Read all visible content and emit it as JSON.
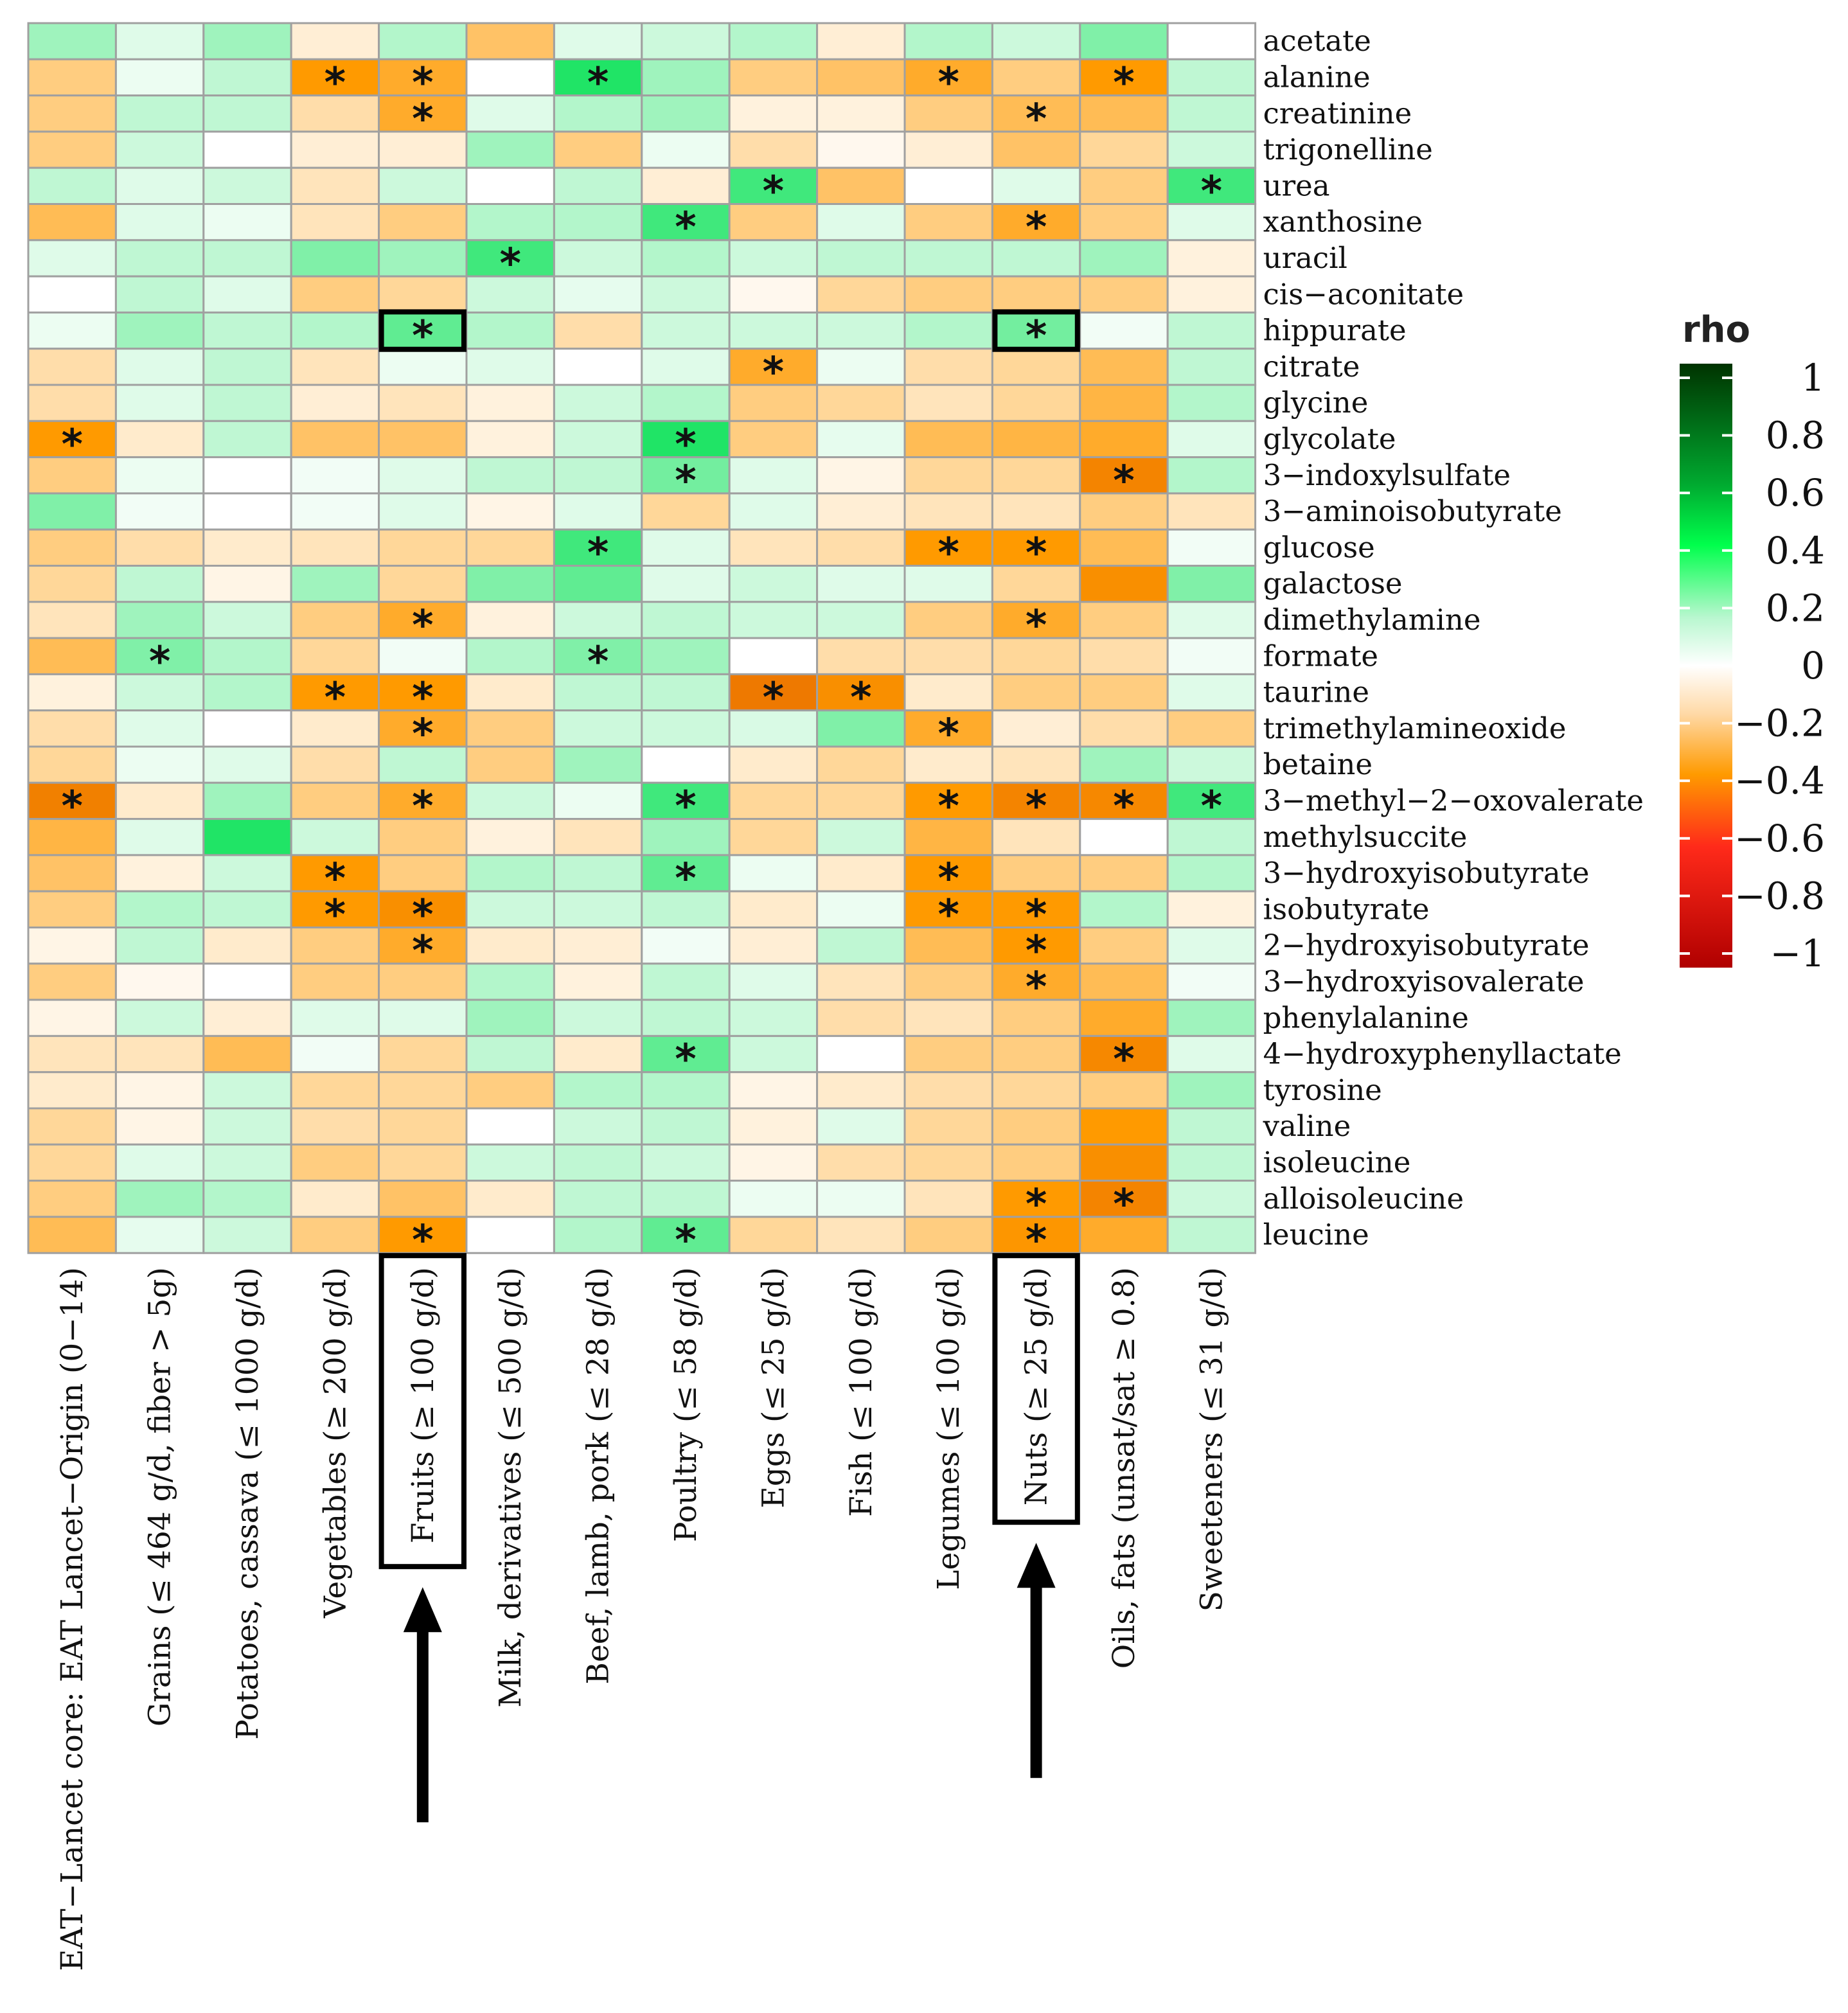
{
  "chart_data": {
    "type": "heatmap",
    "legend_title": "rho",
    "legend_ticks": [
      "1",
      "0.8",
      "0.6",
      "0.4",
      "0.2",
      "0",
      "−0.2",
      "−0.4",
      "−0.6",
      "−0.8",
      "−1"
    ],
    "color_scale": {
      "low": "#b00000",
      "mid_low": "#ff9a00",
      "mid": "#ffffff",
      "mid_high": "#00e050",
      "high": "#003300"
    },
    "range": [
      -1,
      1
    ],
    "highlight_color": "#000000",
    "columns": [
      "EAT−Lancet core: EAT Lancet−Origin (0−14)",
      "Grains (≤ 464 g/d, fiber > 5g)",
      "Potatoes, cassava (≤ 1000 g/d)",
      "Vegetables (≥ 200 g/d)",
      "Fruits (≥ 100 g/d)",
      "Milk, derivatives (≤ 500 g/d)",
      "Beef, lamb, pork (≤ 28 g/d)",
      "Poultry (≤ 58 g/d)",
      "Eggs (≤ 25 g/d)",
      "Fish (≤ 100 g/d)",
      "Legumes (≤ 100 g/d)",
      "Nuts (≥ 25 g/d)",
      "Oils, fats (unsat/sat ≥ 0.8)",
      "Sweeteners (≤ 31 g/d)"
    ],
    "highlighted_columns": [
      4,
      11
    ],
    "highlighted_cells": [
      [
        8,
        4
      ],
      [
        8,
        11
      ]
    ],
    "rows": [
      {
        "name": "acetate",
        "values": [
          0.15,
          0.05,
          0.15,
          -0.05,
          0.12,
          -0.18,
          0.05,
          0.08,
          0.12,
          -0.05,
          0.12,
          0.08,
          0.2,
          0.0
        ],
        "stars": []
      },
      {
        "name": "alanine",
        "values": [
          -0.15,
          0.03,
          0.1,
          -0.3,
          -0.25,
          0.0,
          0.35,
          0.15,
          -0.15,
          -0.18,
          -0.25,
          -0.15,
          -0.3,
          0.1
        ],
        "stars": [
          3,
          4,
          6,
          10,
          12
        ]
      },
      {
        "name": "creatinine",
        "values": [
          -0.15,
          0.1,
          0.1,
          -0.1,
          -0.25,
          0.05,
          0.12,
          0.15,
          -0.04,
          -0.04,
          -0.15,
          -0.2,
          -0.2,
          0.1
        ],
        "stars": [
          4,
          11
        ]
      },
      {
        "name": "trigonelline",
        "values": [
          -0.15,
          0.08,
          0.0,
          -0.05,
          -0.05,
          0.15,
          -0.15,
          0.03,
          -0.1,
          -0.02,
          -0.05,
          -0.18,
          -0.12,
          0.08
        ],
        "stars": []
      },
      {
        "name": "urea",
        "values": [
          0.1,
          0.05,
          0.08,
          -0.08,
          0.08,
          0.0,
          0.1,
          -0.05,
          0.3,
          -0.18,
          0.0,
          0.05,
          -0.15,
          0.3
        ],
        "stars": [
          8,
          13
        ]
      },
      {
        "name": "xanthosine",
        "values": [
          -0.2,
          0.05,
          0.03,
          -0.08,
          -0.15,
          0.12,
          0.12,
          0.3,
          -0.15,
          0.05,
          -0.15,
          -0.25,
          -0.15,
          0.05
        ],
        "stars": [
          7,
          11
        ]
      },
      {
        "name": "uracil",
        "values": [
          0.05,
          0.1,
          0.1,
          0.2,
          0.15,
          0.3,
          0.08,
          0.12,
          0.08,
          0.1,
          0.1,
          0.1,
          0.15,
          -0.04
        ],
        "stars": [
          5
        ]
      },
      {
        "name": "cis−aconitate",
        "values": [
          0.0,
          0.1,
          0.05,
          -0.15,
          -0.12,
          0.08,
          0.04,
          0.08,
          -0.02,
          -0.12,
          -0.15,
          -0.15,
          -0.15,
          -0.04
        ],
        "stars": []
      },
      {
        "name": "hippurate",
        "values": [
          0.03,
          0.15,
          0.1,
          0.12,
          0.25,
          0.12,
          -0.1,
          0.08,
          0.08,
          0.08,
          0.12,
          0.22,
          0.02,
          0.1
        ],
        "stars": [
          4,
          11
        ]
      },
      {
        "name": "citrate",
        "values": [
          -0.1,
          0.05,
          0.1,
          -0.08,
          0.03,
          0.05,
          0.0,
          0.05,
          -0.25,
          0.03,
          -0.1,
          -0.12,
          -0.2,
          0.1
        ],
        "stars": [
          8
        ]
      },
      {
        "name": "glycine",
        "values": [
          -0.1,
          0.05,
          0.1,
          -0.05,
          -0.08,
          -0.04,
          0.08,
          0.12,
          -0.15,
          -0.12,
          -0.08,
          -0.12,
          -0.22,
          0.12
        ],
        "stars": []
      },
      {
        "name": "glycolate",
        "values": [
          -0.3,
          -0.06,
          0.1,
          -0.18,
          -0.18,
          -0.04,
          0.08,
          0.35,
          -0.15,
          0.04,
          -0.2,
          -0.22,
          -0.25,
          0.05
        ],
        "stars": [
          0,
          7
        ]
      },
      {
        "name": "3−indoxylsulfate",
        "values": [
          -0.15,
          0.03,
          0.0,
          0.02,
          0.05,
          0.1,
          0.1,
          0.22,
          0.05,
          -0.03,
          -0.12,
          -0.12,
          -0.4,
          0.12
        ],
        "stars": [
          7,
          12
        ]
      },
      {
        "name": "3−aminoisobutyrate",
        "values": [
          0.2,
          0.02,
          0.0,
          0.02,
          0.05,
          -0.03,
          0.05,
          -0.12,
          0.05,
          -0.05,
          -0.08,
          -0.08,
          -0.15,
          -0.08
        ],
        "stars": []
      },
      {
        "name": "glucose",
        "values": [
          -0.15,
          -0.1,
          -0.06,
          -0.08,
          -0.12,
          -0.12,
          0.3,
          0.05,
          -0.08,
          -0.1,
          -0.3,
          -0.3,
          -0.2,
          0.02
        ],
        "stars": [
          6,
          10,
          11
        ]
      },
      {
        "name": "galactose",
        "values": [
          -0.12,
          0.1,
          -0.03,
          0.15,
          -0.12,
          0.2,
          0.25,
          0.05,
          0.08,
          0.05,
          0.05,
          -0.12,
          -0.35,
          0.2
        ],
        "stars": []
      },
      {
        "name": "dimethylamine",
        "values": [
          -0.08,
          0.15,
          0.08,
          -0.15,
          -0.25,
          -0.04,
          0.08,
          0.1,
          0.08,
          0.08,
          -0.15,
          -0.25,
          -0.15,
          0.05
        ],
        "stars": [
          4,
          11
        ]
      },
      {
        "name": "formate",
        "values": [
          -0.2,
          0.2,
          0.12,
          -0.12,
          0.02,
          0.12,
          0.2,
          0.15,
          0.0,
          -0.1,
          -0.1,
          -0.12,
          -0.1,
          0.02
        ],
        "stars": [
          1,
          6
        ]
      },
      {
        "name": "taurine",
        "values": [
          -0.04,
          0.08,
          0.12,
          -0.3,
          -0.3,
          -0.06,
          0.1,
          0.1,
          -0.45,
          -0.35,
          -0.06,
          -0.15,
          -0.15,
          0.05
        ],
        "stars": [
          3,
          4,
          8,
          9
        ]
      },
      {
        "name": "trimethylamineoxide",
        "values": [
          -0.1,
          0.05,
          0.0,
          -0.06,
          -0.25,
          -0.15,
          0.08,
          0.08,
          0.06,
          0.2,
          -0.25,
          -0.05,
          -0.1,
          -0.15
        ],
        "stars": [
          4,
          10
        ]
      },
      {
        "name": "betaine",
        "values": [
          -0.12,
          0.03,
          0.05,
          -0.1,
          0.1,
          -0.15,
          0.15,
          0.0,
          -0.06,
          -0.12,
          -0.06,
          -0.08,
          0.15,
          0.08
        ],
        "stars": []
      },
      {
        "name": "3−methyl−2−oxovalerate",
        "values": [
          -0.42,
          -0.06,
          0.15,
          -0.15,
          -0.25,
          0.08,
          0.03,
          0.3,
          -0.12,
          -0.12,
          -0.3,
          -0.4,
          -0.38,
          0.3
        ],
        "stars": [
          0,
          4,
          7,
          10,
          11,
          12,
          13
        ]
      },
      {
        "name": "methylsuccite",
        "values": [
          -0.22,
          0.05,
          0.35,
          0.08,
          -0.15,
          -0.04,
          -0.08,
          0.15,
          -0.12,
          0.08,
          -0.22,
          -0.08,
          0.0,
          0.1
        ],
        "stars": []
      },
      {
        "name": "3−hydroxyisobutyrate",
        "values": [
          -0.18,
          -0.04,
          0.08,
          -0.3,
          -0.15,
          0.12,
          0.1,
          0.25,
          0.03,
          -0.06,
          -0.3,
          -0.15,
          -0.15,
          0.12
        ],
        "stars": [
          3,
          7,
          10
        ]
      },
      {
        "name": "isobutyrate",
        "values": [
          -0.15,
          0.12,
          0.1,
          -0.3,
          -0.35,
          0.08,
          0.08,
          0.1,
          -0.06,
          0.03,
          -0.3,
          -0.3,
          0.12,
          -0.04
        ],
        "stars": [
          3,
          4,
          10,
          11
        ]
      },
      {
        "name": "2−hydroxyisobutyrate",
        "values": [
          -0.03,
          0.1,
          -0.06,
          -0.15,
          -0.25,
          -0.06,
          -0.05,
          0.02,
          -0.05,
          0.1,
          -0.2,
          -0.3,
          -0.15,
          0.05
        ],
        "stars": [
          4,
          11
        ]
      },
      {
        "name": "3−hydroxyisovalerate",
        "values": [
          -0.15,
          -0.02,
          0.0,
          -0.15,
          -0.15,
          0.12,
          -0.04,
          0.1,
          0.05,
          -0.08,
          -0.15,
          -0.25,
          -0.2,
          0.02
        ],
        "stars": [
          11
        ]
      },
      {
        "name": "phenylalanine",
        "values": [
          -0.03,
          0.08,
          -0.05,
          0.05,
          0.05,
          0.15,
          0.08,
          0.1,
          0.08,
          -0.1,
          -0.08,
          -0.15,
          -0.25,
          0.15
        ],
        "stars": []
      },
      {
        "name": "4−hydroxyphenyllactate",
        "values": [
          -0.08,
          -0.08,
          -0.2,
          0.02,
          -0.12,
          0.1,
          -0.06,
          0.25,
          0.08,
          0.0,
          -0.15,
          -0.15,
          -0.38,
          0.05
        ],
        "stars": [
          7,
          12
        ]
      },
      {
        "name": "tyrosine",
        "values": [
          -0.06,
          -0.03,
          0.08,
          -0.12,
          -0.12,
          -0.15,
          0.12,
          0.12,
          -0.03,
          -0.06,
          -0.1,
          -0.12,
          -0.15,
          0.15
        ],
        "stars": []
      },
      {
        "name": "valine",
        "values": [
          -0.12,
          -0.03,
          0.08,
          -0.1,
          -0.12,
          0.0,
          0.08,
          0.1,
          -0.04,
          0.05,
          -0.12,
          -0.15,
          -0.3,
          0.1
        ],
        "stars": []
      },
      {
        "name": "isoleucine",
        "values": [
          -0.12,
          0.05,
          0.08,
          -0.15,
          -0.12,
          0.08,
          0.1,
          0.08,
          -0.03,
          -0.1,
          -0.12,
          -0.15,
          -0.35,
          0.1
        ],
        "stars": []
      },
      {
        "name": "alloisoleucine",
        "values": [
          -0.15,
          0.15,
          0.12,
          -0.06,
          -0.18,
          -0.06,
          0.1,
          0.1,
          0.03,
          0.03,
          -0.08,
          -0.3,
          -0.4,
          0.08
        ],
        "stars": [
          11,
          12
        ]
      },
      {
        "name": "leucine",
        "values": [
          -0.2,
          0.04,
          0.08,
          -0.15,
          -0.3,
          0.0,
          0.12,
          0.25,
          -0.12,
          -0.08,
          -0.15,
          -0.32,
          -0.25,
          0.1
        ],
        "stars": [
          4,
          7,
          11
        ]
      }
    ]
  }
}
